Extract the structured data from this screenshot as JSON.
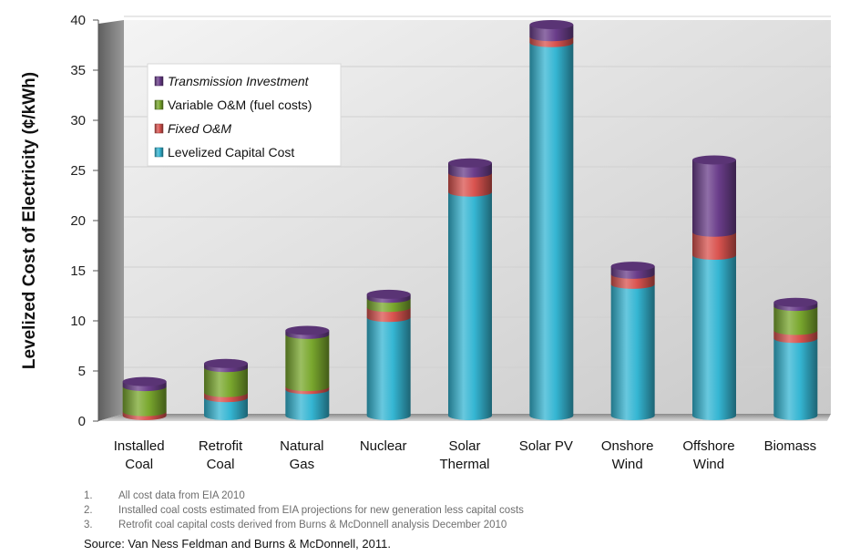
{
  "chart_data": {
    "type": "bar",
    "stacked": true,
    "title": "",
    "ylabel": "Levelized Cost of Electricity (¢/kWh)",
    "xlabel": "",
    "ylim": [
      0,
      40
    ],
    "yticks": [
      0,
      5,
      10,
      15,
      20,
      25,
      30,
      35,
      40
    ],
    "grid": true,
    "legend_position": "top-left",
    "categories": [
      [
        "Installed",
        "Coal"
      ],
      [
        "Retrofit",
        "Coal"
      ],
      [
        "Natural",
        "Gas"
      ],
      [
        "Nuclear"
      ],
      [
        "Solar",
        "Thermal"
      ],
      [
        "Solar PV"
      ],
      [
        "Onshore",
        "Wind"
      ],
      [
        "Offshore",
        "Wind"
      ],
      [
        "Biomass"
      ]
    ],
    "series": [
      {
        "name": "Levelized Capital Cost",
        "color": "#35b6d3",
        "values": [
          0.0,
          1.8,
          2.6,
          9.8,
          22.3,
          37.2,
          13.1,
          16.0,
          7.7
        ]
      },
      {
        "name": "Fixed O&M",
        "color": "#d9534f",
        "values": [
          0.4,
          0.5,
          0.3,
          1.0,
          1.9,
          0.6,
          1.0,
          2.3,
          0.8
        ]
      },
      {
        "name": "Variable O&M (fuel costs)",
        "color": "#7aa82e",
        "values": [
          2.5,
          2.5,
          5.2,
          0.9,
          0.0,
          0.0,
          0.0,
          0.0,
          2.4
        ]
      },
      {
        "name": "Transmission Investment",
        "color": "#6a3d8a",
        "values": [
          0.5,
          0.4,
          0.4,
          0.4,
          1.0,
          1.2,
          0.8,
          7.2,
          0.4
        ]
      }
    ],
    "legend_order": [
      "Transmission Investment",
      "Variable O&M (fuel costs)",
      "Fixed O&M",
      "Levelized Capital Cost"
    ]
  },
  "footnotes": [
    {
      "num": "1.",
      "text": "All cost data from EIA 2010"
    },
    {
      "num": "2.",
      "text": "Installed coal costs estimated from EIA projections for new generation less capital costs"
    },
    {
      "num": "3.",
      "text": "Retrofit coal capital costs derived from Burns & McDonnell analysis December  2010"
    }
  ],
  "source": "Source:  Van Ness Feldman and Burns & McDonnell, 2011."
}
